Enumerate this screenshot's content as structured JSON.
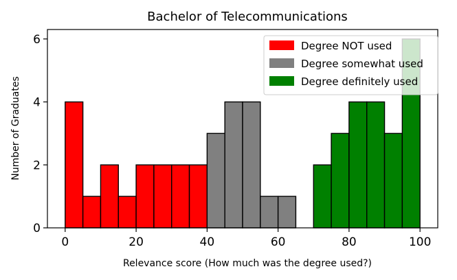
{
  "chart_data": {
    "type": "bar",
    "title": "Bachelor of Telecommunications",
    "xlabel": "Relevance score (How much was the degree used?)",
    "ylabel": "Number of Graduates",
    "xlim": [
      -5,
      105
    ],
    "ylim": [
      0,
      6.3
    ],
    "xticks": [
      0,
      20,
      40,
      60,
      80,
      100
    ],
    "yticks": [
      0,
      2,
      4,
      6
    ],
    "bin_width": 5,
    "grid": false,
    "legend_position": "top-right",
    "series": [
      {
        "name": "Degree NOT used",
        "color": "#ff0000",
        "bins": [
          {
            "x": 0,
            "value": 4
          },
          {
            "x": 5,
            "value": 1
          },
          {
            "x": 10,
            "value": 2
          },
          {
            "x": 15,
            "value": 1
          },
          {
            "x": 20,
            "value": 2
          },
          {
            "x": 25,
            "value": 2
          },
          {
            "x": 30,
            "value": 2
          },
          {
            "x": 35,
            "value": 2
          }
        ]
      },
      {
        "name": "Degree somewhat used",
        "color": "#808080",
        "bins": [
          {
            "x": 40,
            "value": 3
          },
          {
            "x": 45,
            "value": 4
          },
          {
            "x": 50,
            "value": 4
          },
          {
            "x": 55,
            "value": 1
          },
          {
            "x": 60,
            "value": 1
          }
        ]
      },
      {
        "name": "Degree definitely used",
        "color": "#008000",
        "bins": [
          {
            "x": 70,
            "value": 2
          },
          {
            "x": 75,
            "value": 3
          },
          {
            "x": 80,
            "value": 4
          },
          {
            "x": 85,
            "value": 4
          },
          {
            "x": 90,
            "value": 3
          },
          {
            "x": 95,
            "value": 6
          }
        ]
      }
    ]
  }
}
